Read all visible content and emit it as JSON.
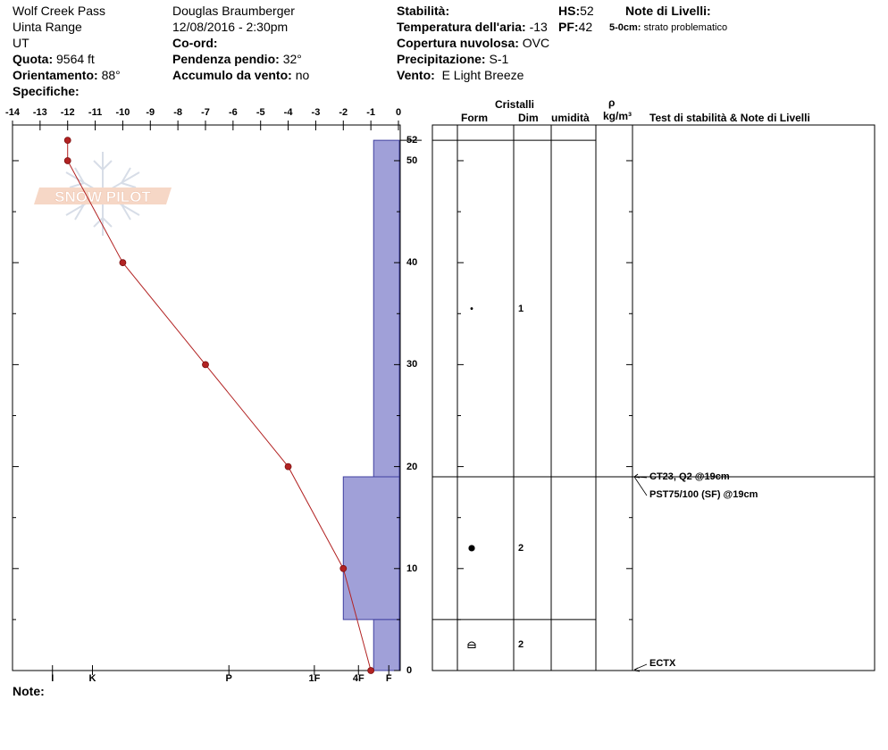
{
  "header": {
    "location": "Wolf Creek Pass",
    "range": "Uinta Range",
    "state": "UT",
    "elevation_label": "Quota:",
    "elevation_value": "9564 ft",
    "aspect_label": "Orientamento:",
    "aspect_value": "88°",
    "specifics_label": "Specifiche:",
    "observer": "Douglas Braumberger",
    "datetime": "12/08/2016 - 2:30pm",
    "coords_label": "Co-ord:",
    "slope_label": "Pendenza pendio:",
    "slope_value": "32°",
    "wind_loading_label": "Accumulo da vento:",
    "wind_loading_value": "no",
    "stability_label": "Stabilità:",
    "air_temp_label": "Temperatura dell'aria:",
    "air_temp_value": "-13",
    "sky_label": "Copertura nuvolosa:",
    "sky_value": "OVC",
    "precip_label": "Precipitazione:",
    "precip_value": "S-1",
    "wind_label": "Vento:",
    "wind_value": "E Light Breeze",
    "hs_label": "HS:",
    "hs_value": "52",
    "pf_label": "PF:",
    "pf_value": "42",
    "layer_notes_title": "Note di Livelli:",
    "layer_note_depth": "5-0cm:",
    "layer_note_text": "strato problematico"
  },
  "logo_text": "SNOW PILOT",
  "notes_label": "Note:",
  "columns": {
    "crystals": "Cristalli",
    "form": "Form",
    "size": "Dim",
    "moisture": "umidità",
    "rho": "ρ",
    "density_unit": "kg/m³",
    "tests": "Test di stabilità & Note di Livelli"
  },
  "crystal_layers": [
    {
      "top": 52,
      "bottom": 19,
      "form_symbol": "dot-small",
      "form_depth": 35.5,
      "size": "1"
    },
    {
      "top": 19,
      "bottom": 5,
      "form_symbol": "dot-large",
      "form_depth": 12,
      "size": "2"
    },
    {
      "top": 5,
      "bottom": 0,
      "form_symbol": "facet-cup",
      "form_depth": 2.5,
      "size": "2"
    }
  ],
  "stability_tests": [
    {
      "depth": 19,
      "text": "CT23, Q2 @19cm"
    },
    {
      "depth": 19,
      "text": "PST75/100 (SF) @19cm"
    },
    {
      "depth": 0,
      "text": "ECTX"
    }
  ],
  "chart_data": {
    "type": "line",
    "series": [
      {
        "values": [
          {
            "x": -12,
            "y": 52
          },
          {
            "x": -12,
            "y": 50
          },
          {
            "x": -10,
            "y": 40
          },
          {
            "x": -7,
            "y": 30
          },
          {
            "x": -4,
            "y": 20
          },
          {
            "x": -2,
            "y": 10
          },
          {
            "x": -1,
            "y": 0
          }
        ]
      }
    ],
    "temperature_ticks": [
      -14,
      -13,
      -12,
      -11,
      -10,
      -9,
      -8,
      -7,
      -6,
      -5,
      -4,
      -3,
      -2,
      -1,
      0
    ],
    "xlim": [
      -14,
      0
    ],
    "depth_ticks": [
      0,
      10,
      20,
      30,
      40,
      50
    ],
    "hs_tick": 52,
    "ylim": [
      0,
      53.5
    ],
    "hardness_ticks": [
      {
        "label": "I",
        "temp": -12.55
      },
      {
        "label": "K",
        "temp": -11.1
      },
      {
        "label": "P",
        "temp": -6.15
      },
      {
        "label": "1F",
        "temp": -3.05
      },
      {
        "label": "4F",
        "temp": -1.45
      },
      {
        "label": "F",
        "temp": -0.35
      }
    ],
    "hardness_profile": [
      {
        "top": 52,
        "bottom": 19,
        "hardness": "F"
      },
      {
        "top": 19,
        "bottom": 5,
        "hardness": "4F"
      },
      {
        "top": 5,
        "bottom": 0,
        "hardness": "F"
      }
    ],
    "colors": {
      "temperature": "#b22222",
      "hardness": "#a0a0d8"
    }
  }
}
